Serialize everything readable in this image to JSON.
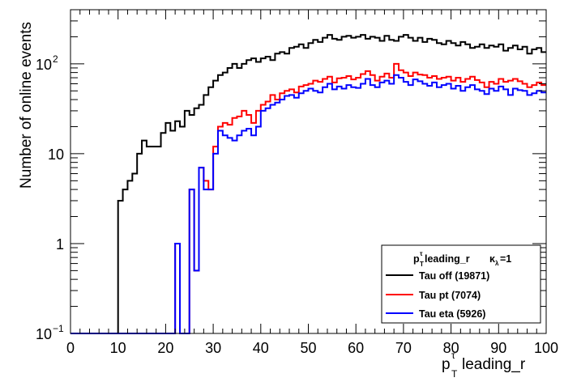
{
  "chart_data": {
    "type": "line",
    "title": "",
    "xlabel": "leading_r",
    "ylabel": "Number of online events",
    "x_symbol": "p",
    "x_symbol_sub": "T",
    "x_symbol_sup": "τ",
    "xlim": [
      0,
      100
    ],
    "ylim": [
      0.1,
      400
    ],
    "yscale": "log",
    "x_ticks": [
      0,
      10,
      20,
      30,
      40,
      50,
      60,
      70,
      80,
      90,
      100
    ],
    "y_tick_labels": [
      {
        "value": 0.1,
        "base": "10",
        "exp": "−1"
      },
      {
        "value": 1,
        "base": "1",
        "exp": ""
      },
      {
        "value": 10,
        "base": "10",
        "exp": ""
      },
      {
        "value": 100,
        "base": "10",
        "exp": "2"
      }
    ],
    "bin_width": 1,
    "bin_start": 0,
    "legend": {
      "position": "bottom-right",
      "header_p": "p",
      "header_sub": "T",
      "header_sup": "τ",
      "header_mid": " leading_r",
      "header_kappa": "κ",
      "header_kappa_sub": "λ",
      "header_end": "=1"
    },
    "series": [
      {
        "name": "Tau off (19871)",
        "color": "#000000",
        "values": [
          0.1,
          0.1,
          0.1,
          0.1,
          0.1,
          0.1,
          0.1,
          0.1,
          0.1,
          0.1,
          3,
          4,
          5,
          6,
          10,
          14,
          12,
          12,
          12,
          17,
          22,
          18,
          23,
          20,
          30,
          27,
          32,
          35,
          45,
          55,
          65,
          75,
          80,
          90,
          100,
          90,
          100,
          110,
          115,
          105,
          115,
          120,
          110,
          130,
          135,
          130,
          150,
          155,
          165,
          150,
          170,
          185,
          175,
          195,
          210,
          190,
          185,
          200,
          205,
          195,
          200,
          210,
          190,
          200,
          195,
          180,
          205,
          185,
          180,
          200,
          210,
          195,
          180,
          195,
          175,
          190,
          185,
          170,
          165,
          180,
          170,
          160,
          175,
          165,
          150,
          155,
          165,
          150,
          160,
          155,
          165,
          140,
          150,
          160,
          145,
          155,
          130,
          145,
          150,
          135
        ]
      },
      {
        "name": "Tau pt (7074)",
        "color": "#ff0000",
        "values": [
          0.1,
          0.1,
          0.1,
          0.1,
          0.1,
          0.1,
          0.1,
          0.1,
          0.1,
          0.1,
          0.1,
          0.1,
          0.1,
          0.1,
          0.1,
          0.1,
          0.1,
          0.1,
          0.1,
          0.1,
          0.1,
          0.1,
          1,
          0.1,
          0.1,
          4,
          0.5,
          7,
          5,
          4,
          12,
          20,
          22,
          21,
          25,
          26,
          30,
          27,
          22,
          30,
          35,
          38,
          45,
          40,
          47,
          50,
          52,
          48,
          56,
          58,
          60,
          65,
          63,
          68,
          72,
          62,
          69,
          70,
          73,
          67,
          70,
          77,
          83,
          75,
          65,
          72,
          78,
          70,
          100,
          85,
          80,
          73,
          80,
          76,
          75,
          70,
          73,
          68,
          70,
          72,
          65,
          70,
          63,
          68,
          72,
          66,
          62,
          55,
          63,
          60,
          68,
          63,
          65,
          68,
          64,
          60,
          55,
          58,
          62,
          58
        ]
      },
      {
        "name": "Tau eta (5926)",
        "color": "#0000ff",
        "values": [
          0.1,
          0.1,
          0.1,
          0.1,
          0.1,
          0.1,
          0.1,
          0.1,
          0.1,
          0.1,
          0.1,
          0.1,
          0.1,
          0.1,
          0.1,
          0.1,
          0.1,
          0.1,
          0.1,
          0.1,
          0.1,
          0.1,
          1,
          0.1,
          0.1,
          4,
          0.5,
          7,
          4,
          4,
          10,
          18,
          16,
          15,
          14,
          16,
          18,
          19,
          16,
          20,
          30,
          32,
          35,
          37,
          40,
          44,
          45,
          42,
          47,
          50,
          53,
          50,
          48,
          55,
          60,
          52,
          56,
          53,
          58,
          55,
          54,
          60,
          68,
          58,
          55,
          62,
          65,
          60,
          75,
          70,
          63,
          58,
          67,
          64,
          60,
          57,
          62,
          55,
          58,
          60,
          53,
          57,
          50,
          55,
          58,
          52,
          50,
          46,
          53,
          50,
          56,
          52,
          45,
          53,
          51,
          50,
          45,
          47,
          50,
          48
        ]
      }
    ]
  }
}
